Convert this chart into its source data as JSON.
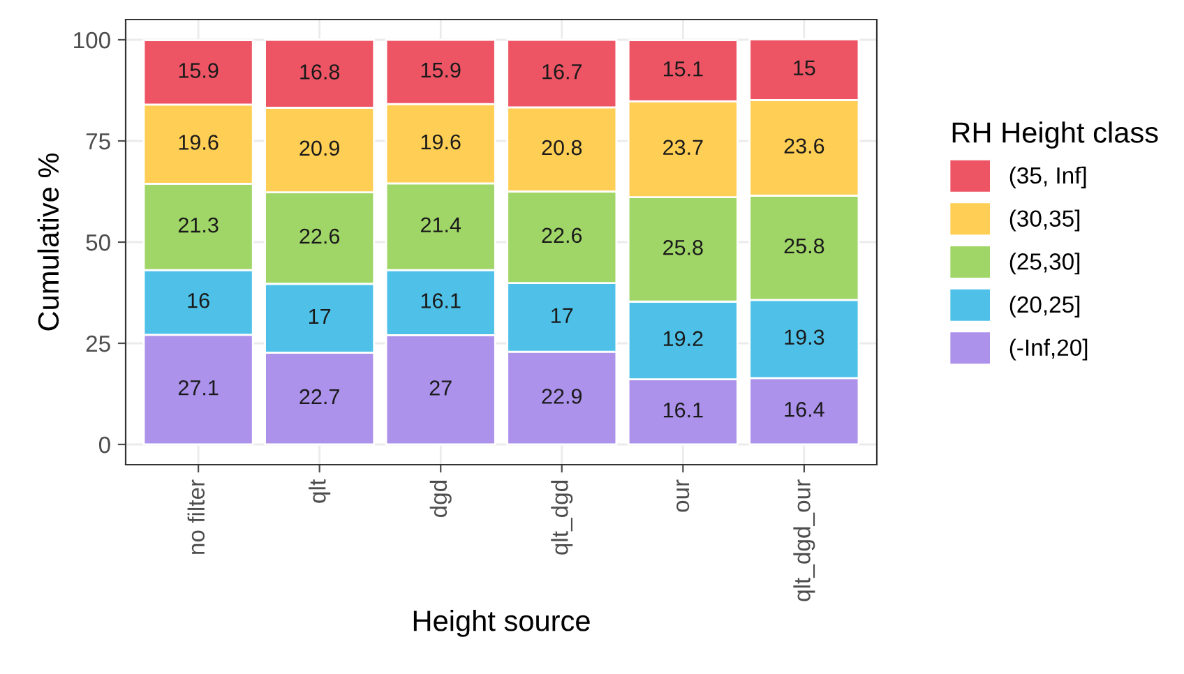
{
  "chart_data": {
    "type": "bar",
    "stacked": true,
    "xlabel": "Height source",
    "ylabel": "Cumulative %",
    "legend_title": "RH Height class",
    "categories": [
      "no filter",
      "qlt",
      "dgd",
      "qlt_dgd",
      "our",
      "qlt_dgd_our"
    ],
    "series": [
      {
        "name": "(-Inf,20]",
        "color": "#ac92eb",
        "values": [
          27.1,
          22.7,
          27,
          22.9,
          16.1,
          16.4
        ]
      },
      {
        "name": "(20,25]",
        "color": "#4fc1e8",
        "values": [
          16,
          17,
          16.1,
          17,
          19.2,
          19.3
        ]
      },
      {
        "name": "(25,30]",
        "color": "#a0d567",
        "values": [
          21.3,
          22.6,
          21.4,
          22.6,
          25.8,
          25.8
        ]
      },
      {
        "name": "(30,35]",
        "color": "#ffce54",
        "values": [
          19.6,
          20.9,
          19.6,
          20.8,
          23.7,
          23.6
        ]
      },
      {
        "name": "(35, Inf]",
        "color": "#ed5565",
        "values": [
          15.9,
          16.8,
          15.9,
          16.7,
          15.1,
          15
        ]
      }
    ],
    "ylim": [
      -5,
      105
    ],
    "yticks": [
      0,
      25,
      50,
      75,
      100
    ],
    "grid": true,
    "legend": "right",
    "data_labels": true
  }
}
